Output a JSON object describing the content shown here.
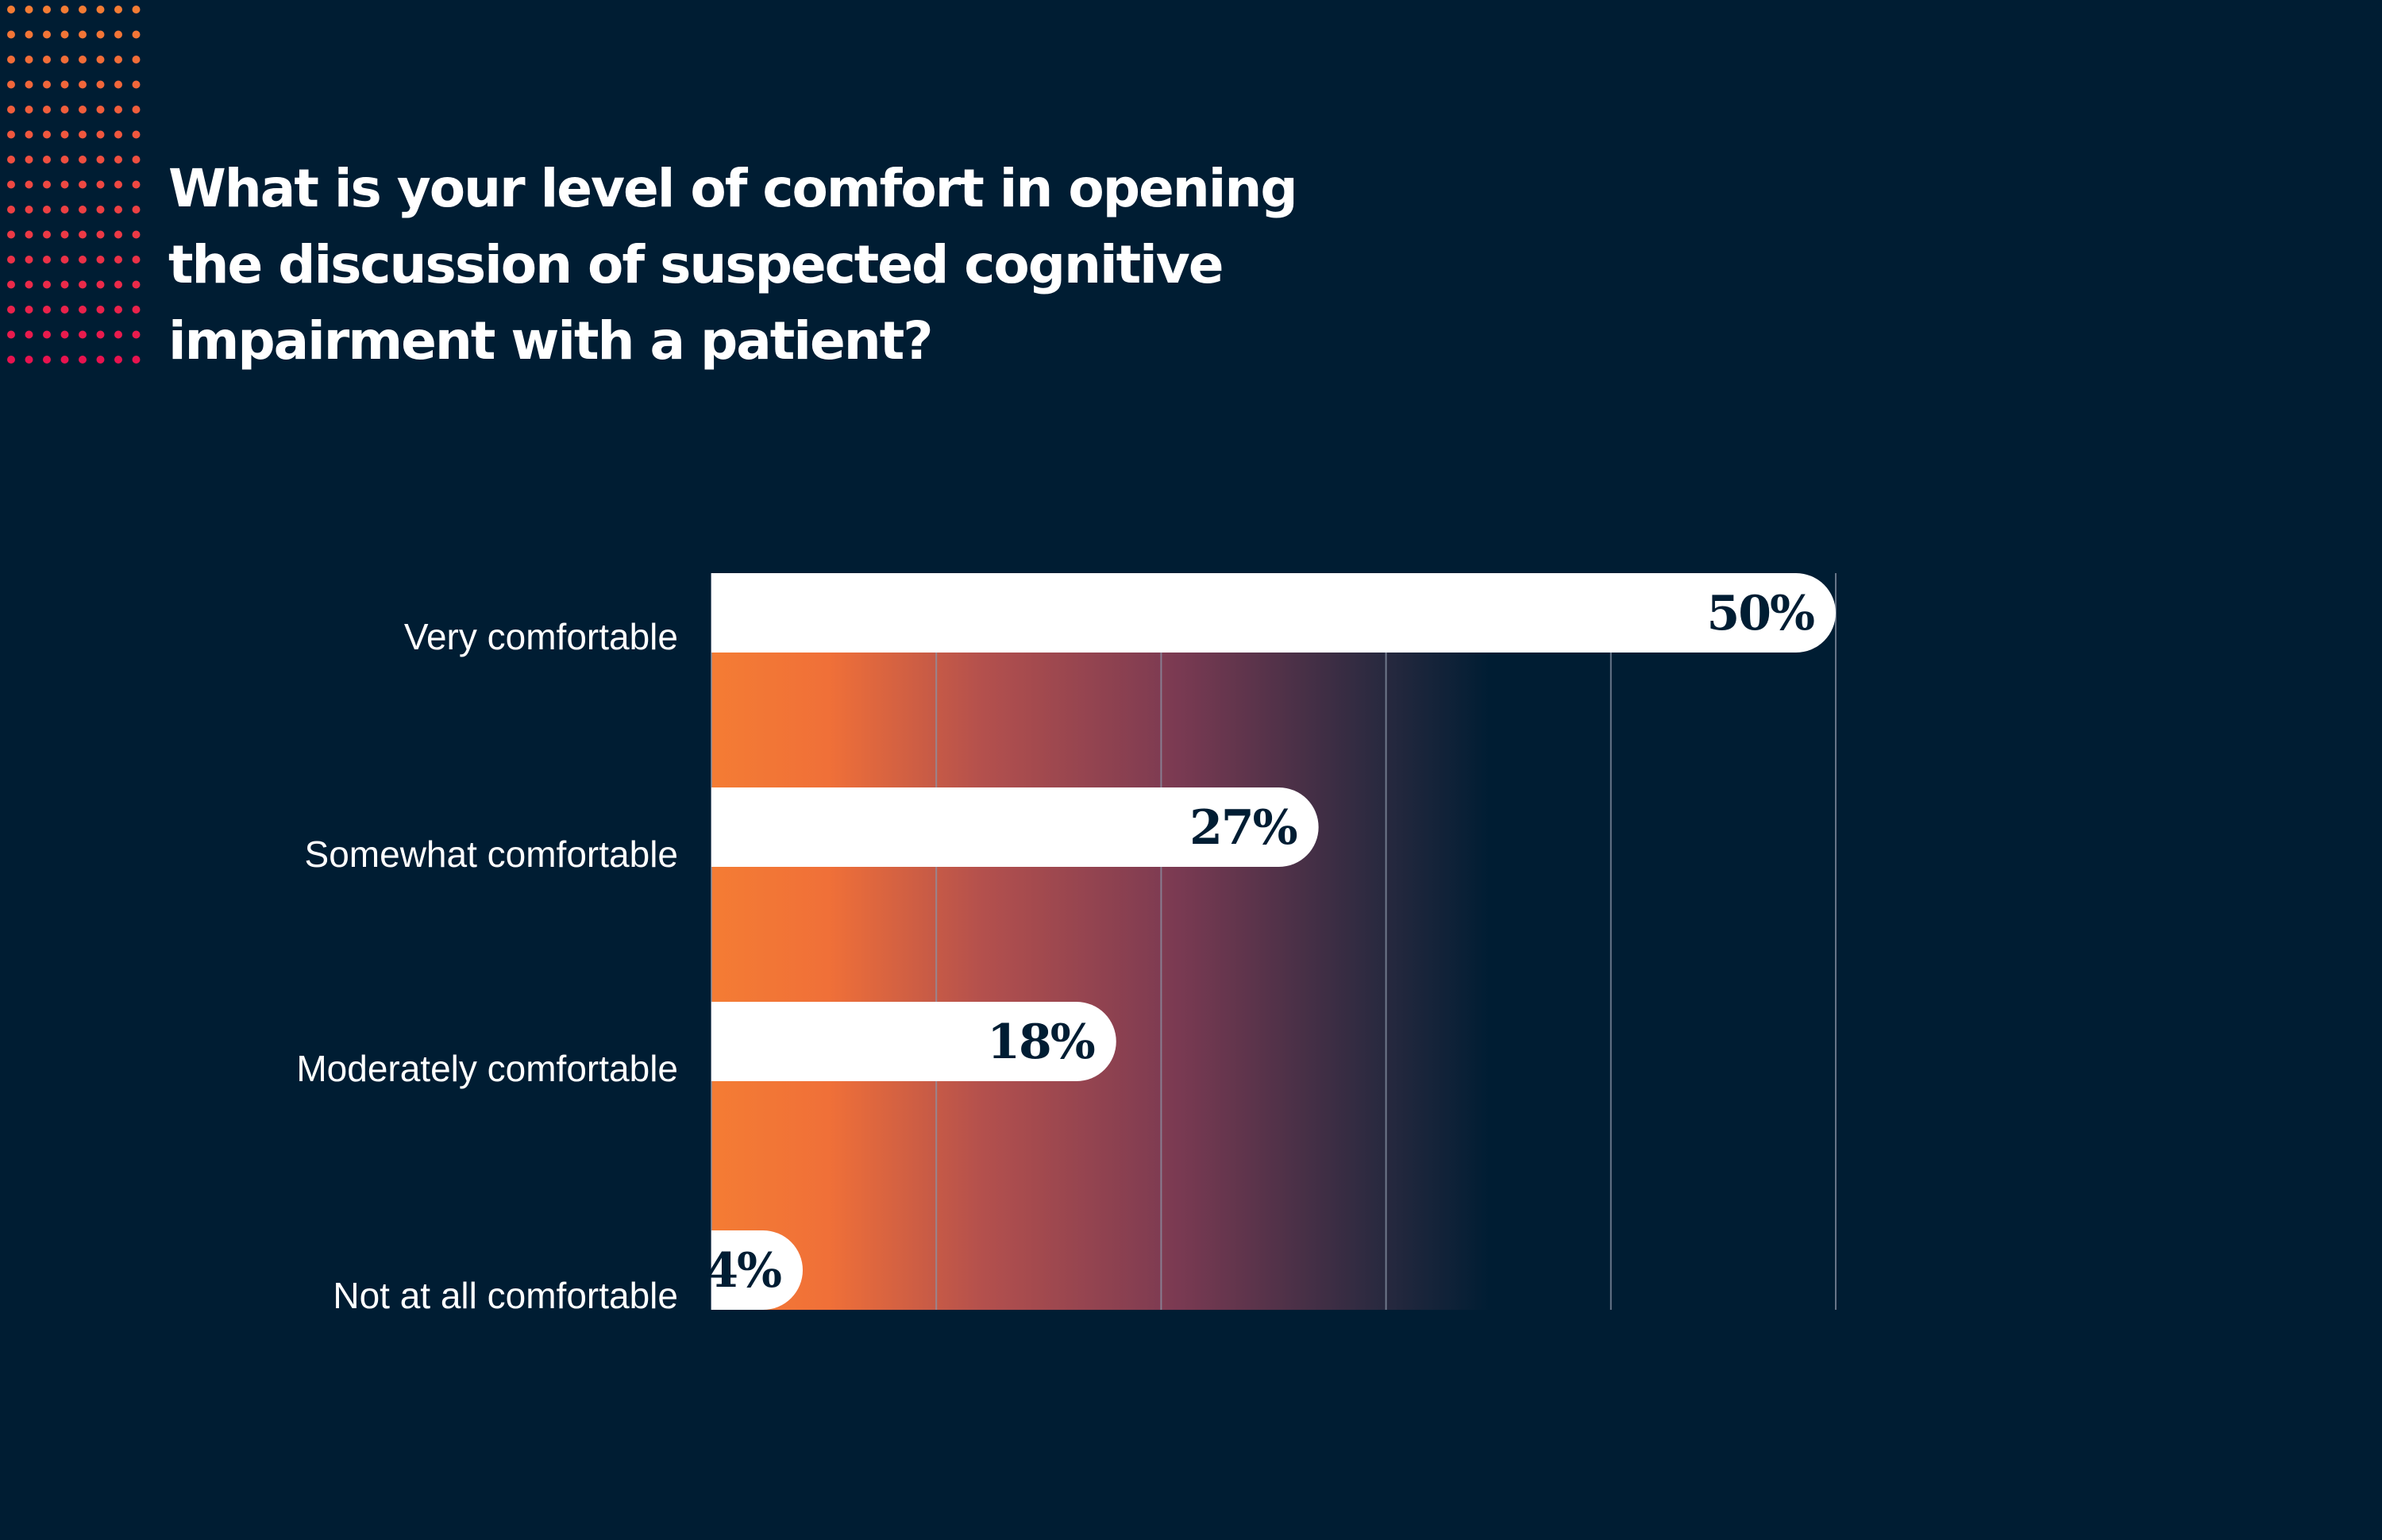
{
  "title": "What is your level of comfort in opening the discussion of suspected cognitive impairment with a patient?",
  "colors": {
    "background": "#001d33",
    "bar": "#ffffff",
    "gradient_start": "#f47c34",
    "gradient_end": "#001d33",
    "dot_top": "#f47c34",
    "dot_bottom": "#e8134f",
    "gridline": "#8a93a6"
  },
  "chart_data": {
    "type": "bar",
    "orientation": "horizontal",
    "categories": [
      "Very comfortable",
      "Somewhat comfortable",
      "Moderately comfortable",
      "Not at all comfortable"
    ],
    "values": [
      50,
      27,
      18,
      4
    ],
    "value_labels": [
      "50%",
      "27%",
      "18%",
      "4%"
    ],
    "xlim": [
      0,
      50
    ],
    "grid": true,
    "legend": "none"
  }
}
